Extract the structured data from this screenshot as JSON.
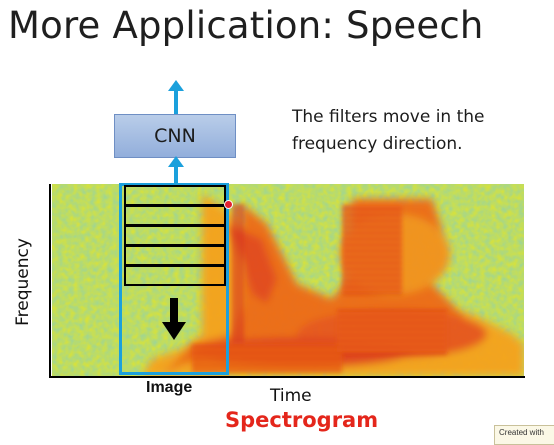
{
  "slide": {
    "title": "More Application: Speech"
  },
  "diagram": {
    "cnn_label": "CNN",
    "note": "The filters move in the frequency direction.",
    "y_axis_label": "Frequency",
    "x_axis_label": "Time",
    "image_label": "Image",
    "caption": "Spectrogram"
  },
  "watermark": {
    "text": "Created with"
  },
  "colors": {
    "arrow": "#1ba0dc",
    "window": "#1ba0dc",
    "caption": "#e4261b",
    "cnn_box": "#9fb9e1"
  },
  "icons": {
    "up_arrow": "arrow-up-icon",
    "down_arrow": "arrow-down-icon"
  }
}
